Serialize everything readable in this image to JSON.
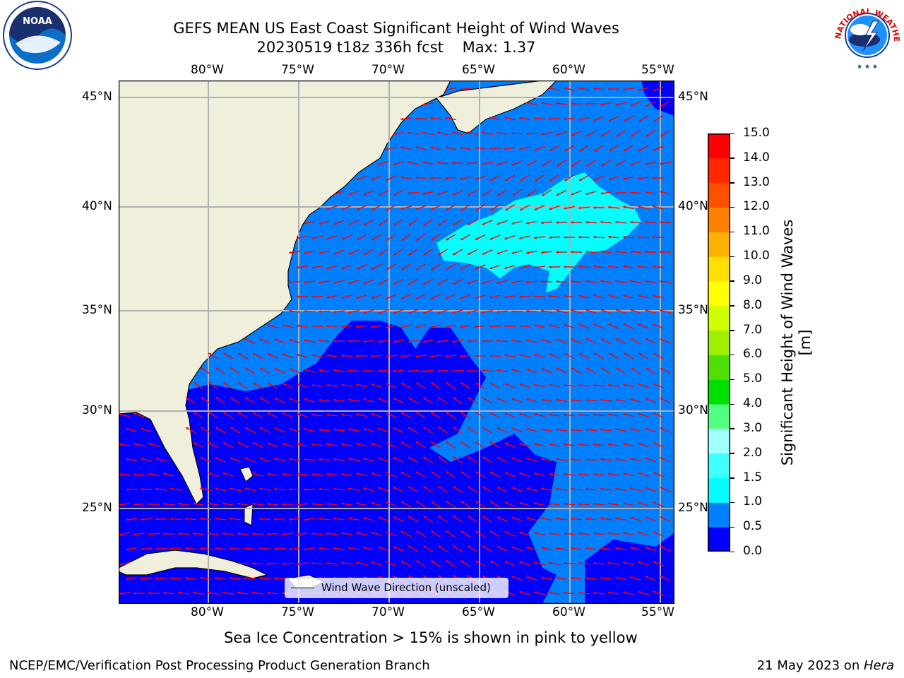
{
  "title": {
    "line1": "GEFS MEAN US East Coast Significant Height of Wind Waves",
    "line2": "20230519 t18z 336h fcst    Max: 1.37"
  },
  "logos": {
    "left": "NOAA",
    "right": "NATIONAL WEATHER SERVICE"
  },
  "map": {
    "lon_labels": [
      "80°W",
      "75°W",
      "70°W",
      "65°W",
      "60°W",
      "55°W"
    ],
    "lat_labels": [
      "45°N",
      "40°N",
      "35°N",
      "30°N",
      "25°N"
    ],
    "legend_label": "Wind Wave Direction (unscaled)",
    "colors": {
      "land": "#efefdc",
      "low": "#0000ff",
      "mid": "#0080ff",
      "high": "#00ffff",
      "arrow": "#ff0000",
      "grid": "#b0b0b0"
    }
  },
  "colorbar": {
    "label": "Significant Height of Wind Waves [m]",
    "ticks": [
      "0.0",
      "0.5",
      "1.0",
      "1.5",
      "2.0",
      "3.0",
      "4.0",
      "5.0",
      "6.0",
      "7.0",
      "8.0",
      "9.0",
      "10.0",
      "11.0",
      "12.0",
      "13.0",
      "14.0",
      "15.0"
    ],
    "colors": [
      "#0000ff",
      "#0080ff",
      "#00ffff",
      "#40ffff",
      "#a0ffff",
      "#50ff80",
      "#00e000",
      "#50e000",
      "#a0f000",
      "#d0ff00",
      "#ffff00",
      "#ffe000",
      "#ffb000",
      "#ff8000",
      "#ff5000",
      "#ff2800",
      "#ff0000"
    ]
  },
  "chart_data": {
    "type": "heatmap",
    "variable": "Significant Height of Wind Waves",
    "units": "m",
    "run": "20230519 t18z",
    "forecast_hour": "336h",
    "max_value": 1.37,
    "region": {
      "lon_range": [
        -85,
        -54
      ],
      "lat_range": [
        20.5,
        46
      ]
    },
    "color_levels": [
      0.0,
      0.5,
      1.0,
      1.5,
      2.0,
      3.0,
      4.0,
      5.0,
      6.0,
      7.0,
      8.0,
      9.0,
      10.0,
      11.0,
      12.0,
      13.0,
      14.0,
      15.0
    ]
  },
  "notes": {
    "sea_ice": "Sea Ice Concentration > 15% is shown in pink to yellow",
    "credit": "NCEP/EMC/Verification Post Processing Product Generation Branch",
    "date": "21 May 2023 on ",
    "machine": "Hera"
  }
}
